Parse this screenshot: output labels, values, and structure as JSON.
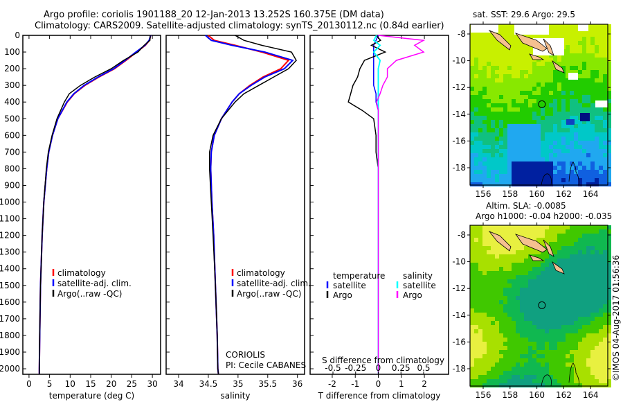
{
  "title_line1": "Argo profile: coriolis 1901188_20 12-Jan-2013 13.252S 160.375E (DM data)",
  "title_line2": "Climatology: CARS2009. Satellite-adjusted climatology: synTS_20130112.nc (0.84d earlier)",
  "credit": "©IMOS 04-Aug-2017 01:56:36",
  "colors": {
    "climatology": "#ff0000",
    "satellite": "#0000ff",
    "argo": "#000000",
    "sal_satellite": "#00ffff",
    "sal_argo": "#ff00ff"
  },
  "chart_data": [
    {
      "type": "line",
      "title": "",
      "xlabel": "temperature (deg C)",
      "ylabel": "",
      "xlim": [
        -1.5,
        32
      ],
      "ylim": [
        2033,
        0
      ],
      "xticks": [
        0,
        5,
        10,
        15,
        20,
        25,
        30
      ],
      "yticks": [
        0,
        100,
        200,
        300,
        400,
        500,
        600,
        700,
        800,
        900,
        1000,
        1100,
        1200,
        1300,
        1400,
        1500,
        1600,
        1700,
        1800,
        1900,
        2000
      ],
      "legend": [
        "climatology",
        "satellite-adj. clim.",
        "Argo(..raw -QC)"
      ],
      "depth": [
        0,
        30,
        60,
        100,
        150,
        200,
        250,
        300,
        350,
        400,
        500,
        600,
        700,
        800,
        1000,
        1200,
        1500,
        1800,
        2000,
        2030
      ],
      "series": [
        {
          "name": "climatology",
          "values": [
            29.6,
            29.3,
            28.3,
            26.2,
            23.6,
            20.8,
            17.0,
            13.6,
            11.0,
            9.3,
            7.0,
            5.7,
            4.8,
            4.3,
            3.6,
            3.2,
            2.8,
            2.6,
            2.5,
            2.5
          ]
        },
        {
          "name": "satellite-adj. clim.",
          "values": [
            29.6,
            29.2,
            28.2,
            26.0,
            23.4,
            20.6,
            16.8,
            13.4,
            10.9,
            9.2,
            7.0,
            5.7,
            4.8,
            4.3,
            3.6,
            3.2,
            2.8,
            2.6,
            2.5,
            2.5
          ]
        },
        {
          "name": "Argo(..raw -QC)",
          "values": [
            29.5,
            29.4,
            28.0,
            26.5,
            23.0,
            20.0,
            16.0,
            12.5,
            9.8,
            8.6,
            6.8,
            5.6,
            4.7,
            4.2,
            3.6,
            3.2,
            2.8,
            2.6,
            2.5,
            2.5
          ]
        }
      ]
    },
    {
      "type": "line",
      "xlabel": "salinity",
      "xlim": [
        33.79,
        36.12
      ],
      "ylim": [
        2033,
        0
      ],
      "xticks": [
        34,
        34.5,
        35,
        35.5,
        36
      ],
      "legend": [
        "climatology",
        "satellite-adj. clim.",
        "Argo(..raw -QC)"
      ],
      "annotations": [
        "CORIOLIS",
        "PI: Cecile CABANES"
      ],
      "depth": [
        0,
        30,
        60,
        100,
        150,
        200,
        250,
        300,
        350,
        400,
        500,
        600,
        700,
        800,
        1000,
        1200,
        1500,
        1800,
        2000,
        2030
      ],
      "series": [
        {
          "name": "climatology",
          "values": [
            34.5,
            34.6,
            34.95,
            35.4,
            35.85,
            35.72,
            35.42,
            35.2,
            35.02,
            34.9,
            34.72,
            34.6,
            34.55,
            34.54,
            34.56,
            34.59,
            34.62,
            34.65,
            34.66,
            34.67
          ]
        },
        {
          "name": "satellite-adj. clim.",
          "values": [
            34.45,
            34.55,
            34.9,
            35.45,
            35.92,
            35.78,
            35.45,
            35.22,
            35.02,
            34.9,
            34.72,
            34.6,
            34.55,
            34.54,
            34.56,
            34.59,
            34.62,
            34.65,
            34.66,
            34.67
          ]
        },
        {
          "name": "Argo(..raw -QC)",
          "values": [
            34.95,
            35.1,
            35.4,
            35.9,
            35.98,
            35.85,
            35.6,
            35.35,
            35.1,
            34.95,
            34.72,
            34.58,
            34.52,
            34.52,
            34.55,
            34.58,
            34.62,
            34.65,
            34.66,
            34.67
          ]
        }
      ]
    },
    {
      "type": "line",
      "xlabel": "T difference from climatology",
      "xlabel2": "S difference from climatology",
      "xlim": [
        -2.96,
        3.05
      ],
      "ylim": [
        2033,
        0
      ],
      "xticks": [
        -2,
        -1,
        0,
        1,
        2
      ],
      "xticks2": [
        "-0.5",
        "-0.25",
        "0",
        "0.25",
        "0.5"
      ],
      "legend_title_t": "temperature",
      "legend_title_s": "salinity",
      "legend": [
        "satellite",
        "Argo",
        "satellite",
        "Argo"
      ],
      "depth": [
        0,
        30,
        60,
        100,
        150,
        200,
        250,
        300,
        350,
        400,
        450,
        500,
        600,
        700,
        800,
        1000,
        1200,
        1500,
        1800,
        2000,
        2030
      ],
      "series": [
        {
          "name": "T satellite",
          "values": [
            0,
            -0.1,
            -0.2,
            -0.2,
            -0.2,
            -0.2,
            -0.2,
            -0.2,
            -0.1,
            -0.1,
            0,
            0,
            0,
            0,
            0,
            0,
            0,
            0,
            0,
            0,
            0
          ]
        },
        {
          "name": "T Argo",
          "values": [
            -0.1,
            0.1,
            -0.3,
            0.3,
            -0.6,
            -0.8,
            -0.9,
            -1.1,
            -1.2,
            -1.3,
            -0.7,
            -0.2,
            -0.1,
            -0.1,
            0,
            0,
            0,
            0,
            0,
            0,
            0
          ]
        },
        {
          "name": "S satellite",
          "values": [
            -0.02,
            -0.05,
            0.02,
            -0.05,
            0.02,
            0.0,
            0.0,
            0.0,
            0.0,
            0.0,
            0.0,
            0.0,
            0.0,
            0.0,
            0.0,
            0.0,
            0.0,
            0.0,
            0.0,
            0.0,
            0.0
          ]
        },
        {
          "name": "S Argo",
          "values": [
            0.0,
            0.5,
            0.4,
            0.5,
            0.2,
            0.1,
            0.1,
            0.05,
            0.02,
            -0.02,
            0.0,
            0.0,
            0.0,
            0.0,
            0.0,
            0.0,
            0.0,
            0.0,
            0.0,
            0.0,
            0.0
          ]
        }
      ]
    }
  ],
  "map_sst": {
    "title": "sat. SST: 29.6 Argo: 29.5",
    "lon_ticks": [
      156,
      158,
      160,
      162,
      164
    ],
    "lat_ticks": [
      -8,
      -10,
      -12,
      -14,
      -16,
      -18
    ],
    "argo_lon": 160.375,
    "argo_lat": -13.252
  },
  "map_sla": {
    "title_line1": "Altim. SLA: -0.0085",
    "title_line2": "Argo h1000: -0.04 h2000: -0.035",
    "lon_ticks": [
      156,
      158,
      160,
      162,
      164
    ],
    "lat_ticks": [
      -8,
      -10,
      -12,
      -14,
      -16,
      -18
    ],
    "argo_lon": 160.375,
    "argo_lat": -13.252
  }
}
